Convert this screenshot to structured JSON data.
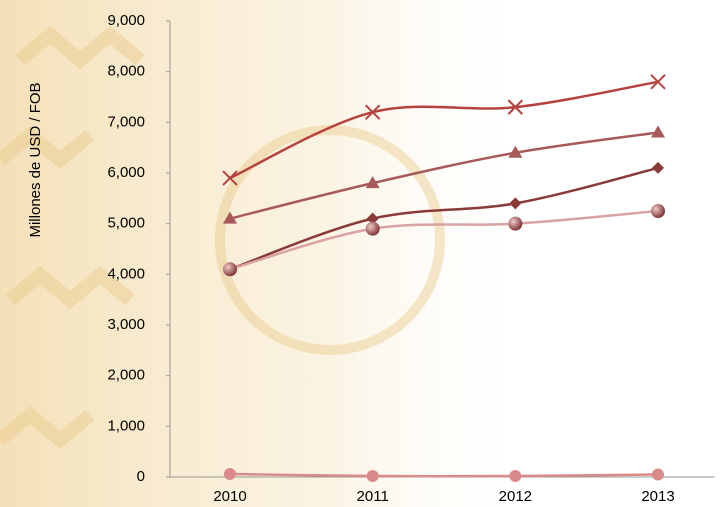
{
  "chart_data": {
    "type": "line",
    "y_label": "Millones de USD / FOB",
    "categories": [
      "2010",
      "2011",
      "2012",
      "2013"
    ],
    "series": [
      {
        "color": "#b5423f",
        "marker": "x",
        "values": [
          5900,
          7200,
          7300,
          7800
        ]
      },
      {
        "color": "#a85a5a",
        "marker": "triangle",
        "values": [
          5100,
          5800,
          6400,
          6800
        ]
      },
      {
        "color": "#8b3a3a",
        "marker": "diamond",
        "values": [
          4100,
          5100,
          5400,
          6100
        ]
      },
      {
        "color": "#d9a3a3",
        "marker": "ball",
        "values": [
          4100,
          4900,
          5000,
          5250
        ]
      },
      {
        "color": "#d98a8a",
        "marker": "dot",
        "values": [
          60,
          20,
          20,
          50
        ]
      }
    ],
    "ylim": [
      0,
      9000
    ],
    "yticks": [
      {
        "value": 0,
        "label": "0"
      },
      {
        "value": 1000,
        "label": "1,000"
      },
      {
        "value": 2000,
        "label": "2,000"
      },
      {
        "value": 3000,
        "label": "3,000"
      },
      {
        "value": 4000,
        "label": "4,000"
      },
      {
        "value": 5000,
        "label": "5,000"
      },
      {
        "value": 6000,
        "label": "6,000"
      },
      {
        "value": 7000,
        "label": "7,000"
      },
      {
        "value": 8000,
        "label": "8,000"
      },
      {
        "value": 9000,
        "label": "9,000"
      }
    ],
    "grid": false
  }
}
